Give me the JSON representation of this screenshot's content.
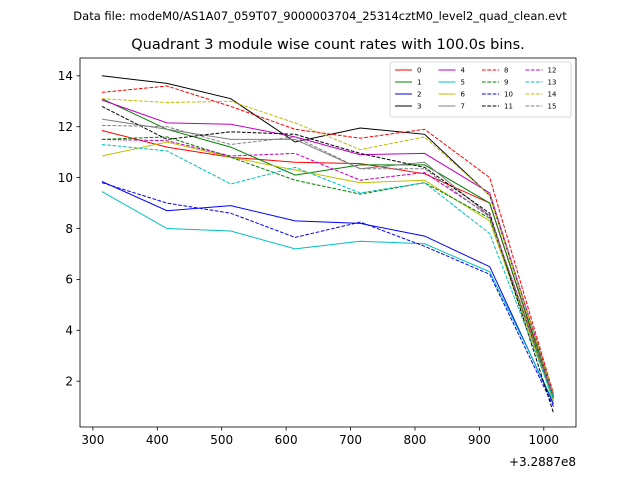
{
  "header": {
    "data_file": "Data file: modeM0/AS1A07_059T07_9000003704_25314cztM0_level2_quad_clean.evt"
  },
  "chart_data": {
    "type": "line",
    "title": "Quadrant 3 module wise count rates with 100.0s bins.",
    "xlabel": "",
    "ylabel": "",
    "x_offset_label": "+3.2887e8",
    "x": [
      314,
      415,
      514,
      614,
      715,
      815,
      916,
      1015
    ],
    "xlim": [
      280,
      1050
    ],
    "ylim": [
      0.2,
      14.7
    ],
    "x_ticks": [
      300,
      400,
      500,
      600,
      700,
      800,
      900,
      1000
    ],
    "y_ticks": [
      2,
      4,
      6,
      8,
      10,
      12,
      14
    ],
    "legend_position": "top-right",
    "series": [
      {
        "name": "0",
        "color": "#ff0000",
        "dash": false,
        "values": [
          11.85,
          11.2,
          10.8,
          10.6,
          10.55,
          10.15,
          9.0,
          1.3
        ]
      },
      {
        "name": "1",
        "color": "#008000",
        "dash": false,
        "values": [
          13.1,
          11.9,
          11.2,
          10.1,
          10.5,
          10.5,
          9.0,
          1.4
        ]
      },
      {
        "name": "2",
        "color": "#0000ff",
        "dash": false,
        "values": [
          9.85,
          8.7,
          8.9,
          8.3,
          8.2,
          7.7,
          6.5,
          1.1
        ]
      },
      {
        "name": "3",
        "color": "#000000",
        "dash": false,
        "values": [
          14.0,
          13.7,
          13.1,
          11.4,
          11.95,
          11.7,
          9.3,
          1.5
        ]
      },
      {
        "name": "4",
        "color": "#bf00bf",
        "dash": false,
        "values": [
          13.05,
          12.15,
          12.1,
          11.6,
          10.9,
          10.95,
          9.4,
          1.5
        ]
      },
      {
        "name": "5",
        "color": "#00bfbf",
        "dash": false,
        "values": [
          9.45,
          8.0,
          7.9,
          7.2,
          7.5,
          7.4,
          6.3,
          1.2
        ]
      },
      {
        "name": "6",
        "color": "#bfbf00",
        "dash": false,
        "values": [
          10.85,
          11.4,
          10.8,
          10.3,
          9.8,
          9.9,
          8.3,
          1.2
        ]
      },
      {
        "name": "7",
        "color": "#808080",
        "dash": false,
        "values": [
          12.3,
          11.9,
          11.5,
          11.5,
          10.35,
          10.6,
          8.5,
          1.3
        ]
      },
      {
        "name": "8",
        "color": "#ff0000",
        "dash": true,
        "values": [
          13.35,
          13.6,
          12.8,
          11.9,
          11.55,
          11.9,
          10.0,
          1.5
        ]
      },
      {
        "name": "9",
        "color": "#008000",
        "dash": true,
        "values": [
          11.5,
          11.6,
          10.8,
          9.9,
          9.35,
          9.8,
          8.4,
          1.35
        ]
      },
      {
        "name": "10",
        "color": "#0000ff",
        "dash": true,
        "values": [
          9.8,
          9.0,
          8.6,
          7.65,
          8.25,
          7.3,
          6.2,
          1.0
        ]
      },
      {
        "name": "11",
        "color": "#000000",
        "dash": true,
        "values": [
          12.8,
          11.5,
          11.8,
          11.7,
          10.95,
          10.4,
          8.6,
          0.75
        ]
      },
      {
        "name": "12",
        "color": "#bf00bf",
        "dash": true,
        "values": [
          11.5,
          11.45,
          10.85,
          10.95,
          9.9,
          10.2,
          8.5,
          1.4
        ]
      },
      {
        "name": "13",
        "color": "#00bfbf",
        "dash": true,
        "values": [
          11.3,
          11.05,
          9.75,
          10.4,
          9.4,
          9.8,
          7.8,
          1.3
        ]
      },
      {
        "name": "14",
        "color": "#bfbf00",
        "dash": true,
        "values": [
          13.1,
          12.95,
          13.0,
          12.15,
          11.1,
          11.6,
          9.3,
          1.5
        ]
      },
      {
        "name": "15",
        "color": "#808080",
        "dash": true,
        "values": [
          12.05,
          12.0,
          11.3,
          11.6,
          10.35,
          10.35,
          8.45,
          1.45
        ]
      }
    ]
  }
}
